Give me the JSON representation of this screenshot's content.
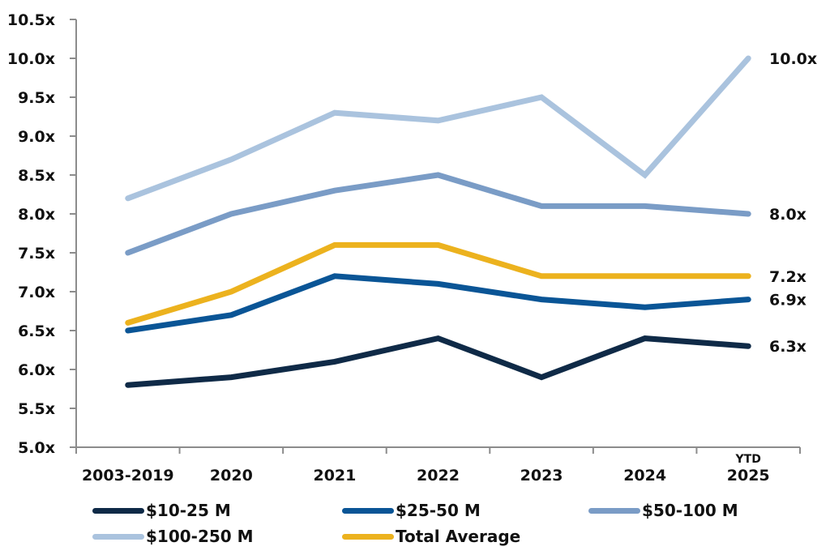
{
  "chart_data": {
    "type": "line",
    "title": "",
    "xlabel": "",
    "ylabel": "",
    "categories": [
      "2003-2019",
      "2020",
      "2021",
      "2022",
      "2023",
      "2024",
      "2025"
    ],
    "category_prefix": {
      "6": "YTD"
    },
    "ylim": [
      5.0,
      10.5
    ],
    "y_ticks": [
      "5.0x",
      "5.5x",
      "6.0x",
      "6.5x",
      "7.0x",
      "7.5x",
      "8.0x",
      "8.5x",
      "9.0x",
      "9.5x",
      "10.0x",
      "10.5x"
    ],
    "y_tick_values": [
      5.0,
      5.5,
      6.0,
      6.5,
      7.0,
      7.5,
      8.0,
      8.5,
      9.0,
      9.5,
      10.0,
      10.5
    ],
    "grid": false,
    "legend_position": "bottom",
    "series": [
      {
        "name": "$10-25 M",
        "color": "#0f2a47",
        "values": [
          5.8,
          5.9,
          6.1,
          6.4,
          5.9,
          6.4,
          6.3
        ],
        "end_label": "6.3x"
      },
      {
        "name": "$25-50 M",
        "color": "#0a5596",
        "values": [
          6.5,
          6.7,
          7.2,
          7.1,
          6.9,
          6.8,
          6.9
        ],
        "end_label": "6.9x"
      },
      {
        "name": "$50-100 M",
        "color": "#7a9cc6",
        "values": [
          7.5,
          8.0,
          8.3,
          8.5,
          8.1,
          8.1,
          8.0
        ],
        "end_label": "8.0x"
      },
      {
        "name": "$100-250 M",
        "color": "#aac3de",
        "values": [
          8.2,
          8.7,
          9.3,
          9.2,
          9.5,
          8.5,
          10.0
        ],
        "end_label": "10.0x"
      },
      {
        "name": "Total Average",
        "color": "#ecb21e",
        "values": [
          6.6,
          7.0,
          7.6,
          7.6,
          7.2,
          7.2,
          7.2
        ],
        "end_label": "7.2x"
      }
    ]
  }
}
